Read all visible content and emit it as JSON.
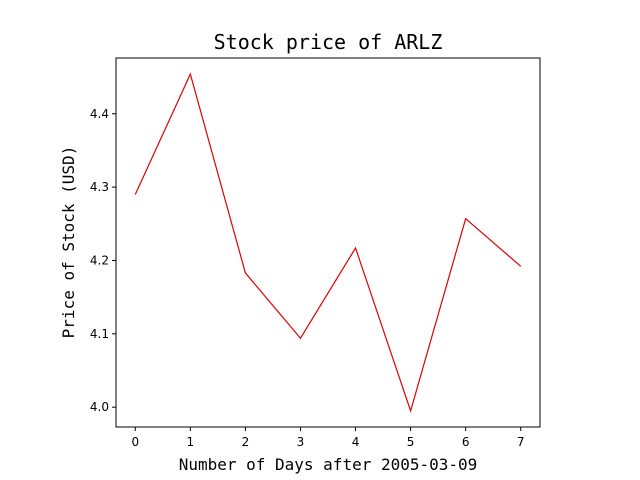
{
  "chart_data": {
    "type": "line",
    "title": "Stock price of ARLZ",
    "xlabel": "Number of Days after 2005-03-09",
    "ylabel": "Price of Stock (USD)",
    "x": [
      0,
      1,
      2,
      3,
      4,
      5,
      6,
      7
    ],
    "series": [
      {
        "values": [
          4.29,
          4.454,
          4.183,
          4.094,
          4.217,
          3.995,
          4.257,
          4.192
        ],
        "color": "#e00000"
      }
    ],
    "xlim": [
      -0.35,
      7.35
    ],
    "ylim": [
      3.973,
      4.476
    ],
    "xticks": [
      0,
      1,
      2,
      3,
      4,
      5,
      6,
      7
    ],
    "yticks": [
      4.0,
      4.1,
      4.2,
      4.3,
      4.4
    ],
    "ytick_labels": [
      "4.0",
      "4.1",
      "4.2",
      "4.3",
      "4.4"
    ],
    "grid": false
  }
}
